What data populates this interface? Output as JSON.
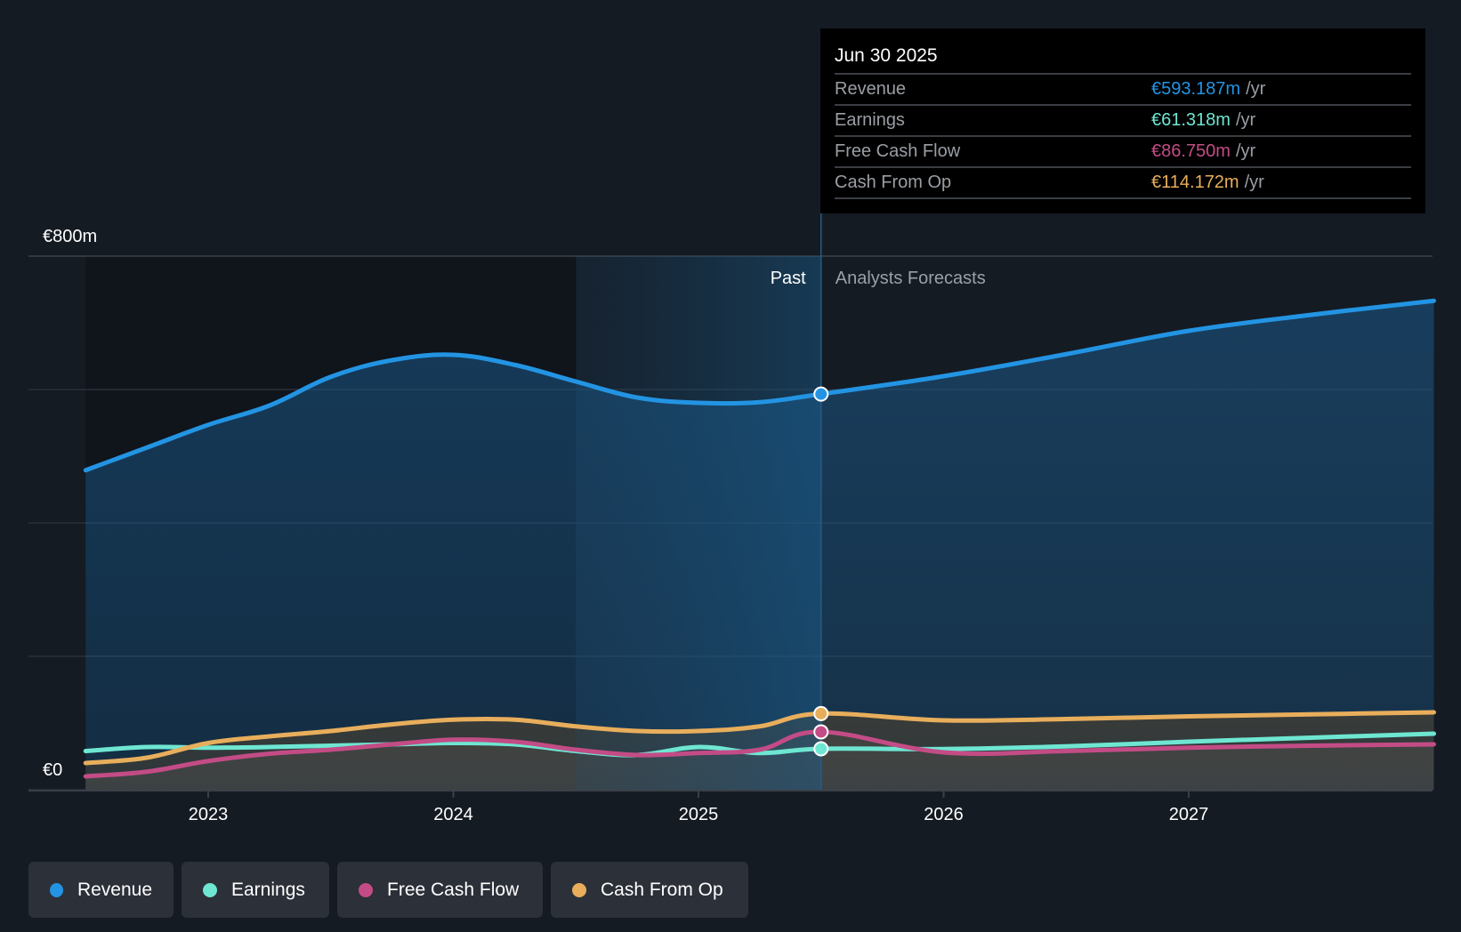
{
  "tooltip": {
    "date": "Jun 30 2025",
    "rows": [
      {
        "name": "Revenue",
        "value": "€593.187m",
        "unit": "/yr",
        "color": "#2394e3"
      },
      {
        "name": "Earnings",
        "value": "€61.318m",
        "unit": "/yr",
        "color": "#6ee6d2"
      },
      {
        "name": "Free Cash Flow",
        "value": "€86.750m",
        "unit": "/yr",
        "color": "#c34c86"
      },
      {
        "name": "Cash From Op",
        "value": "€114.172m",
        "unit": "/yr",
        "color": "#e8ae5c"
      }
    ]
  },
  "regions": {
    "past": "Past",
    "forecast": "Analysts Forecasts"
  },
  "legend": [
    {
      "label": "Revenue",
      "color": "#2394e3"
    },
    {
      "label": "Earnings",
      "color": "#6ee6d2"
    },
    {
      "label": "Free Cash Flow",
      "color": "#c34c86"
    },
    {
      "label": "Cash From Op",
      "color": "#e8ae5c"
    }
  ],
  "chart_data": {
    "type": "line",
    "title": "",
    "xlabel": "",
    "ylabel": "",
    "currency": "€",
    "ylim": [
      0,
      800
    ],
    "xlim": [
      2022.25,
      2028.0
    ],
    "y_ticks": [
      {
        "value": 0,
        "label": "€0"
      },
      {
        "value": 800,
        "label": "€800m"
      }
    ],
    "y_gridlines": [
      0,
      200,
      400,
      600,
      800
    ],
    "x_ticks": [
      {
        "value": 2023,
        "label": "2023"
      },
      {
        "value": 2024,
        "label": "2024"
      },
      {
        "value": 2025,
        "label": "2025"
      },
      {
        "value": 2026,
        "label": "2026"
      },
      {
        "value": 2027,
        "label": "2027"
      }
    ],
    "past_band": [
      2024.5,
      2025.5
    ],
    "divider": 2025.5,
    "highlight_x": 2025.5,
    "legend_position": "bottom",
    "series": [
      {
        "name": "Revenue",
        "color": "#2394e3",
        "filled": true,
        "points": [
          [
            2022.5,
            479
          ],
          [
            2022.75,
            513
          ],
          [
            2023.0,
            547
          ],
          [
            2023.25,
            576
          ],
          [
            2023.5,
            619
          ],
          [
            2023.75,
            644
          ],
          [
            2024.0,
            652
          ],
          [
            2024.25,
            637
          ],
          [
            2024.5,
            612
          ],
          [
            2024.75,
            588
          ],
          [
            2025.0,
            580
          ],
          [
            2025.25,
            581
          ],
          [
            2025.5,
            593.187
          ],
          [
            2026.0,
            620
          ],
          [
            2026.5,
            653
          ],
          [
            2027.0,
            688
          ],
          [
            2027.5,
            712
          ],
          [
            2028.0,
            733
          ]
        ]
      },
      {
        "name": "Earnings",
        "color": "#6ee6d2",
        "filled": false,
        "points": [
          [
            2022.5,
            58
          ],
          [
            2022.75,
            64
          ],
          [
            2023.0,
            63
          ],
          [
            2023.25,
            64
          ],
          [
            2023.5,
            66
          ],
          [
            2023.75,
            68
          ],
          [
            2024.0,
            70
          ],
          [
            2024.25,
            68
          ],
          [
            2024.5,
            58
          ],
          [
            2024.75,
            52
          ],
          [
            2025.0,
            64
          ],
          [
            2025.25,
            55
          ],
          [
            2025.5,
            61.318
          ],
          [
            2026.0,
            61
          ],
          [
            2026.5,
            65
          ],
          [
            2027.0,
            72
          ],
          [
            2027.5,
            78
          ],
          [
            2028.0,
            84
          ]
        ]
      },
      {
        "name": "Free Cash Flow",
        "color": "#c34c86",
        "filled": false,
        "points": [
          [
            2022.5,
            20
          ],
          [
            2022.75,
            27
          ],
          [
            2023.0,
            43
          ],
          [
            2023.25,
            54
          ],
          [
            2023.5,
            60
          ],
          [
            2023.75,
            68
          ],
          [
            2024.0,
            75
          ],
          [
            2024.25,
            72
          ],
          [
            2024.5,
            60
          ],
          [
            2024.75,
            52
          ],
          [
            2025.0,
            55
          ],
          [
            2025.25,
            60
          ],
          [
            2025.5,
            86.75
          ],
          [
            2026.0,
            56
          ],
          [
            2026.5,
            58
          ],
          [
            2027.0,
            63
          ],
          [
            2027.5,
            66
          ],
          [
            2028.0,
            68
          ]
        ]
      },
      {
        "name": "Cash From Op",
        "color": "#e8ae5c",
        "filled": false,
        "points": [
          [
            2022.5,
            40
          ],
          [
            2022.75,
            48
          ],
          [
            2023.0,
            70
          ],
          [
            2023.25,
            80
          ],
          [
            2023.5,
            88
          ],
          [
            2023.75,
            98
          ],
          [
            2024.0,
            105
          ],
          [
            2024.25,
            105
          ],
          [
            2024.5,
            95
          ],
          [
            2024.75,
            88
          ],
          [
            2025.0,
            88
          ],
          [
            2025.25,
            95
          ],
          [
            2025.5,
            114.172
          ],
          [
            2026.0,
            104
          ],
          [
            2026.5,
            106
          ],
          [
            2027.0,
            110
          ],
          [
            2027.5,
            113
          ],
          [
            2028.0,
            116
          ]
        ]
      }
    ]
  }
}
